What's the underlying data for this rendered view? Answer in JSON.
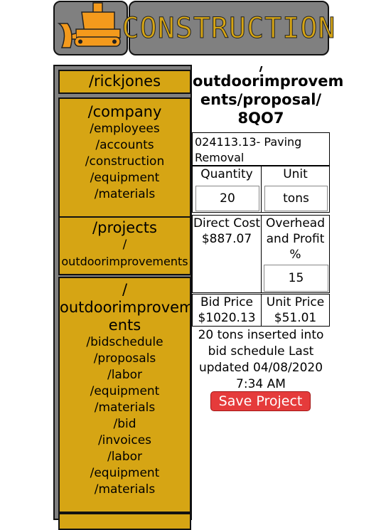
{
  "header": {
    "brand": "CONSTRUCTION",
    "logo_icon": "bulldozer-icon"
  },
  "sidebar": {
    "user": "/rickjones",
    "company": {
      "title": "/company",
      "links": [
        "/employees",
        "/accounts",
        "/construction",
        "/equipment",
        "/materials"
      ]
    },
    "projects": {
      "title": "/projects",
      "slash": "/",
      "name": "outdoorimprovements"
    },
    "project": {
      "title_line1": "/",
      "title_line2": "outdoorimprovem",
      "title_line3": "ents",
      "links": [
        "/bidschedule",
        "/proposals",
        "/labor",
        "/equipment",
        "/materials",
        "/bid",
        "/invoices",
        "/labor",
        "/equipment",
        "/materials"
      ]
    }
  },
  "main": {
    "title_top": "/",
    "title_line1": "outdoorimprovem",
    "title_line2": "ents/proposal/",
    "title_line3": "8QO7",
    "description": "024113.13- Paving Removal",
    "quantity_label": "Quantity",
    "quantity_value": "20",
    "unit_label": "Unit",
    "unit_value": "tons",
    "direct_cost_label": "Direct Cost",
    "direct_cost_value": "$887.07",
    "overhead_label": "Overhead and Profit %",
    "overhead_value": "15",
    "bid_price_label": "Bid Price",
    "bid_price_value": "$1020.13",
    "unit_price_label": "Unit Price",
    "unit_price_value": "$51.01",
    "status": "20 tons inserted into bid schedule Last updated 04/08/2020 7:34 AM",
    "save_label": "Save Project"
  },
  "colors": {
    "gold": "#d6a514",
    "panel_gray": "#808080",
    "save_red": "#e53b3b",
    "logo_orange": "#f49a1c"
  }
}
